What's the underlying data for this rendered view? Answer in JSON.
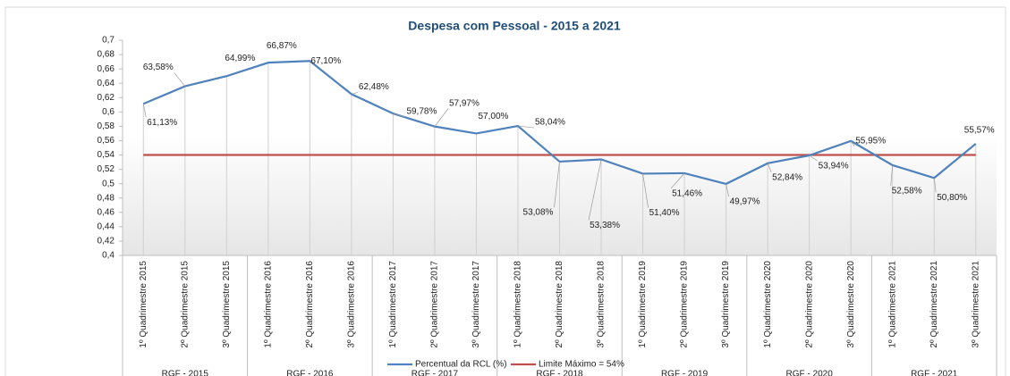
{
  "chart_data": {
    "type": "line",
    "title": "Despesa com Pessoal - 2015 a 2021",
    "categories": [
      "1º Quadrimestre 2015",
      "2º Quadrimestre 2015",
      "3º Quadrimestre 2015",
      "1º Quadrimestre 2016",
      "2º Quadrimestre 2016",
      "3º Quadrimestre 2016",
      "1º Quadrimestre 2017",
      "2º Quadrimestre 2017",
      "3º Quadrimestre 2017",
      "1º Quadrimestre 2018",
      "2º Quadrimestre 2018",
      "3º Quadrimestre 2018",
      "1º Quadrimestre 2019",
      "2º Quadrimestre 2019",
      "3º Quadrimestre 2019",
      "1º Quadrimestre 2020",
      "2º Quadrimestre 2020",
      "3º Quadrimestre 2020",
      "1º Quadrimestre 2021",
      "2º Quadrimestre 2021",
      "3º Quadrimestre 2021"
    ],
    "groups": [
      "RGF - 2015",
      "RGF - 2016",
      "RGF - 2017",
      "RGF - 2018",
      "RGF - 2019",
      "RGF - 2020",
      "RGF - 2021"
    ],
    "series": [
      {
        "name": "Percentual da RCL (%)",
        "color": "#4f81bd",
        "values": [
          0.6113,
          0.6358,
          0.6499,
          0.6687,
          0.671,
          0.6248,
          0.5978,
          0.5797,
          0.57,
          0.5804,
          0.5308,
          0.5338,
          0.514,
          0.5146,
          0.4997,
          0.5284,
          0.5394,
          0.5595,
          0.5258,
          0.508,
          0.5557
        ],
        "value_labels": [
          "61,13%",
          "63,58%",
          "64,99%",
          "66,87%",
          "67,10%",
          "62,48%",
          "59,78%",
          "57,97%",
          "57,00%",
          "58,04%",
          "53,08%",
          "53,38%",
          "51,40%",
          "51,46%",
          "49,97%",
          "52,84%",
          "53,94%",
          "55,95%",
          "52,58%",
          "50,80%",
          "55,57%"
        ]
      },
      {
        "name": "Limite Máximo = 54%",
        "color": "#c0504d",
        "values": [
          0.54,
          0.54,
          0.54,
          0.54,
          0.54,
          0.54,
          0.54,
          0.54,
          0.54,
          0.54,
          0.54,
          0.54,
          0.54,
          0.54,
          0.54,
          0.54,
          0.54,
          0.54,
          0.54,
          0.54,
          0.54
        ]
      }
    ],
    "ylim": [
      0.4,
      0.7
    ],
    "yticks": [
      {
        "value": 0.4,
        "label": "0,4"
      },
      {
        "value": 0.42,
        "label": "0,42"
      },
      {
        "value": 0.44,
        "label": "0,44"
      },
      {
        "value": 0.46,
        "label": "0,46"
      },
      {
        "value": 0.48,
        "label": "0,48"
      },
      {
        "value": 0.5,
        "label": "0,5"
      },
      {
        "value": 0.52,
        "label": "0,52"
      },
      {
        "value": 0.54,
        "label": "0,54"
      },
      {
        "value": 0.56,
        "label": "0,56"
      },
      {
        "value": 0.58,
        "label": "0,58"
      },
      {
        "value": 0.6,
        "label": "0,6"
      },
      {
        "value": 0.62,
        "label": "0,62"
      },
      {
        "value": 0.64,
        "label": "0,64"
      },
      {
        "value": 0.66,
        "label": "0,66"
      },
      {
        "value": 0.68,
        "label": "0,68"
      },
      {
        "value": 0.7,
        "label": "0,7"
      }
    ],
    "legend": "bottom"
  }
}
